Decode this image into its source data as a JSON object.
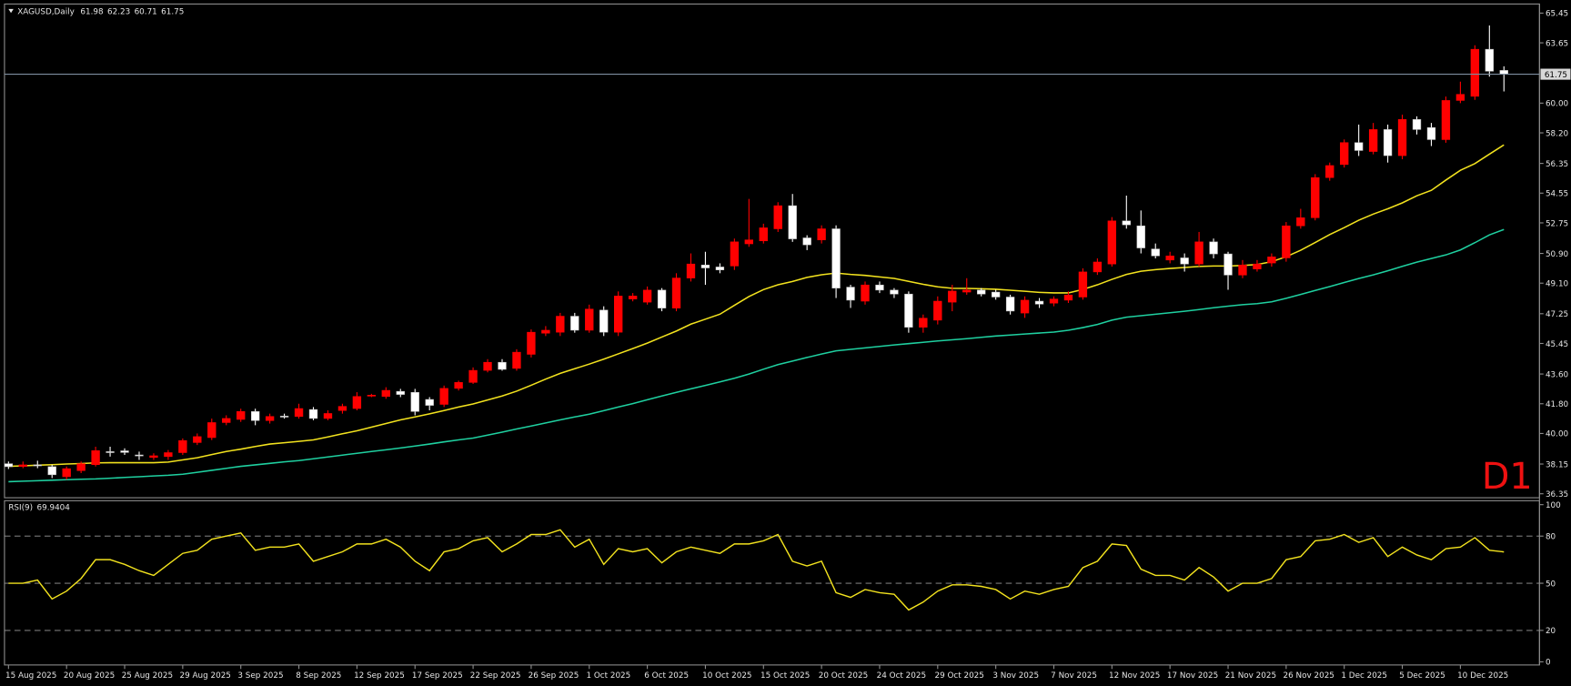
{
  "chart_data": [
    {
      "type": "candlestick",
      "title": "XAGUSD,Daily",
      "timeframe_label": "D1",
      "up_color": "#ff0000",
      "down_color": "#ffffff",
      "categories": [
        "15 Aug 2025",
        null,
        null,
        null,
        "20 Aug 2025",
        null,
        null,
        null,
        "25 Aug 2025",
        null,
        null,
        null,
        "29 Aug 2025",
        null,
        null,
        null,
        "3 Sep 2025",
        null,
        null,
        null,
        "8 Sep 2025",
        null,
        null,
        null,
        "12 Sep 2025",
        null,
        null,
        null,
        "17 Sep 2025",
        null,
        null,
        null,
        "22 Sep 2025",
        null,
        null,
        null,
        "26 Sep 2025",
        null,
        null,
        null,
        "1 Oct 2025",
        null,
        null,
        null,
        "6 Oct 2025",
        null,
        null,
        null,
        "10 Oct 2025",
        null,
        null,
        null,
        "15 Oct 2025",
        null,
        null,
        null,
        "20 Oct 2025",
        null,
        null,
        null,
        "24 Oct 2025",
        null,
        null,
        null,
        "29 Oct 2025",
        null,
        null,
        null,
        "3 Nov 2025",
        null,
        null,
        null,
        "7 Nov 2025",
        null,
        null,
        null,
        "12 Nov 2025",
        null,
        null,
        null,
        "17 Nov 2025",
        null,
        null,
        null,
        "21 Nov 2025",
        null,
        null,
        null,
        "26 Nov 2025",
        null,
        null,
        null,
        "1 Dec 2025",
        null,
        null,
        null,
        "5 Dec 2025",
        null,
        null,
        null,
        "10 Dec 2025",
        null,
        null,
        null
      ],
      "open": [
        38.17,
        38.0,
        38.1,
        37.99,
        37.38,
        37.75,
        38.11,
        38.9,
        38.95,
        38.7,
        38.55,
        38.6,
        38.84,
        39.45,
        39.75,
        40.66,
        40.85,
        41.33,
        40.78,
        41.05,
        41.03,
        41.45,
        40.91,
        41.39,
        41.51,
        42.28,
        42.24,
        42.55,
        42.49,
        42.06,
        41.76,
        42.73,
        43.09,
        43.82,
        44.31,
        43.94,
        44.79,
        46.07,
        46.13,
        47.1,
        46.25,
        47.47,
        46.13,
        48.14,
        47.95,
        48.68,
        47.59,
        49.41,
        50.2,
        50.08,
        50.14,
        51.48,
        51.66,
        52.39,
        53.79,
        51.84,
        51.72,
        52.39,
        48.86,
        48.01,
        48.99,
        48.68,
        48.44,
        46.43,
        46.86,
        47.95,
        48.56,
        48.68,
        48.56,
        48.26,
        47.29,
        48.01,
        47.89,
        48.07,
        48.26,
        49.78,
        50.26,
        52.87,
        52.57,
        51.17,
        50.5,
        50.63,
        50.26,
        51.6,
        50.87,
        49.59,
        49.96,
        50.32,
        50.63,
        52.57,
        53.06,
        55.49,
        56.28,
        57.61,
        57.07,
        58.4,
        56.82,
        59.01,
        58.52,
        57.79,
        60.16,
        60.41,
        63.26,
        61.98
      ],
      "high": [
        38.3,
        38.3,
        38.35,
        38.1,
        38.0,
        38.3,
        39.2,
        39.2,
        39.1,
        38.9,
        38.8,
        39.0,
        39.7,
        40.0,
        40.9,
        41.1,
        41.5,
        41.5,
        41.2,
        41.2,
        41.8,
        41.6,
        41.4,
        41.8,
        42.5,
        42.4,
        42.8,
        42.7,
        42.7,
        42.2,
        42.9,
        43.2,
        44.0,
        44.5,
        44.5,
        45.1,
        46.3,
        46.5,
        47.3,
        47.3,
        47.8,
        47.7,
        48.6,
        48.5,
        48.9,
        48.8,
        49.7,
        50.9,
        51.0,
        50.3,
        51.8,
        54.2,
        52.7,
        54.0,
        54.5,
        52.0,
        52.6,
        52.6,
        49.0,
        49.2,
        49.2,
        48.8,
        48.6,
        47.2,
        48.3,
        49.0,
        49.4,
        48.8,
        48.7,
        48.4,
        48.3,
        48.2,
        48.3,
        48.6,
        50.0,
        50.6,
        53.1,
        54.4,
        53.5,
        51.5,
        51.0,
        50.9,
        52.2,
        51.8,
        51.0,
        50.5,
        50.5,
        50.9,
        52.8,
        53.6,
        55.7,
        56.4,
        57.8,
        58.7,
        58.8,
        58.7,
        59.3,
        59.2,
        58.8,
        60.4,
        61.3,
        63.5,
        64.7,
        62.23
      ],
      "low": [
        37.85,
        37.9,
        37.9,
        37.3,
        37.2,
        37.6,
        38.0,
        38.6,
        38.7,
        38.4,
        38.4,
        38.4,
        38.7,
        39.3,
        39.6,
        40.5,
        40.7,
        40.5,
        40.6,
        40.9,
        40.9,
        40.8,
        40.8,
        41.2,
        41.4,
        42.2,
        42.1,
        42.2,
        41.1,
        41.4,
        41.6,
        42.6,
        43.0,
        43.7,
        43.8,
        43.8,
        44.6,
        45.9,
        45.9,
        46.1,
        46.1,
        45.9,
        45.9,
        48.0,
        47.8,
        47.4,
        47.4,
        49.2,
        49.0,
        49.7,
        49.9,
        51.3,
        51.5,
        52.2,
        51.6,
        51.1,
        51.5,
        48.2,
        47.6,
        47.8,
        48.5,
        48.2,
        46.1,
        46.1,
        46.6,
        47.4,
        48.4,
        48.3,
        48.1,
        47.2,
        47.0,
        47.6,
        47.7,
        47.9,
        48.1,
        49.6,
        50.1,
        52.4,
        50.9,
        50.6,
        50.3,
        49.8,
        50.1,
        50.6,
        48.7,
        49.4,
        49.8,
        50.1,
        50.4,
        52.4,
        52.9,
        55.3,
        56.1,
        56.8,
        56.9,
        56.4,
        56.6,
        58.1,
        57.4,
        57.6,
        60.0,
        60.2,
        61.6,
        60.71
      ],
      "close": [
        37.99,
        38.1,
        38.05,
        37.5,
        37.87,
        38.17,
        38.96,
        38.84,
        38.85,
        38.66,
        38.65,
        38.84,
        39.57,
        39.81,
        40.66,
        40.91,
        41.33,
        40.78,
        41.03,
        41.0,
        41.51,
        40.91,
        41.21,
        41.64,
        42.24,
        42.32,
        42.61,
        42.36,
        41.33,
        41.7,
        42.73,
        43.09,
        43.82,
        44.31,
        43.88,
        44.92,
        46.13,
        46.25,
        47.1,
        46.25,
        47.53,
        46.13,
        48.32,
        48.32,
        48.68,
        47.59,
        49.41,
        50.26,
        50.02,
        49.9,
        51.6,
        51.72,
        52.45,
        53.79,
        51.78,
        51.42,
        52.39,
        48.8,
        48.07,
        48.99,
        48.68,
        48.44,
        46.43,
        46.98,
        48.01,
        48.62,
        48.68,
        48.44,
        48.26,
        47.41,
        48.07,
        47.83,
        48.14,
        48.38,
        49.78,
        50.38,
        52.87,
        52.63,
        51.23,
        50.75,
        50.75,
        50.26,
        51.6,
        50.87,
        49.59,
        50.2,
        50.26,
        50.69,
        52.57,
        53.06,
        55.49,
        56.22,
        57.61,
        57.13,
        58.4,
        56.82,
        59.01,
        58.4,
        57.79,
        60.16,
        60.53,
        63.26,
        61.93,
        61.75
      ],
      "overlays": [
        {
          "color": "#f2e21e",
          "values": [
            38.01,
            38.04,
            38.08,
            38.11,
            38.15,
            38.18,
            38.22,
            38.23,
            38.23,
            38.23,
            38.23,
            38.27,
            38.4,
            38.53,
            38.72,
            38.91,
            39.05,
            39.21,
            39.36,
            39.44,
            39.52,
            39.61,
            39.79,
            39.98,
            40.16,
            40.38,
            40.6,
            40.82,
            41.0,
            41.19,
            41.39,
            41.6,
            41.79,
            42.03,
            42.27,
            42.56,
            42.92,
            43.29,
            43.64,
            43.92,
            44.2,
            44.5,
            44.82,
            45.14,
            45.47,
            45.84,
            46.2,
            46.62,
            46.92,
            47.22,
            47.76,
            48.29,
            48.71,
            49.0,
            49.2,
            49.45,
            49.61,
            49.71,
            49.63,
            49.57,
            49.48,
            49.39,
            49.21,
            49.03,
            48.88,
            48.79,
            48.78,
            48.76,
            48.73,
            48.67,
            48.61,
            48.54,
            48.51,
            48.51,
            48.72,
            49.0,
            49.33,
            49.63,
            49.82,
            49.92,
            49.99,
            50.05,
            50.11,
            50.14,
            50.14,
            50.17,
            50.23,
            50.4,
            50.7,
            51.09,
            51.56,
            52.04,
            52.46,
            52.91,
            53.28,
            53.6,
            53.96,
            54.39,
            54.72,
            55.34,
            55.93,
            56.34,
            56.91,
            57.47
          ]
        },
        {
          "color": "#1fd0a0",
          "values": [
            37.08,
            37.11,
            37.14,
            37.17,
            37.2,
            37.23,
            37.25,
            37.29,
            37.34,
            37.38,
            37.43,
            37.47,
            37.53,
            37.65,
            37.77,
            37.89,
            38.01,
            38.1,
            38.19,
            38.28,
            38.36,
            38.47,
            38.58,
            38.69,
            38.8,
            38.91,
            39.01,
            39.12,
            39.24,
            39.36,
            39.49,
            39.61,
            39.72,
            39.9,
            40.08,
            40.27,
            40.45,
            40.64,
            40.82,
            41.0,
            41.17,
            41.38,
            41.6,
            41.81,
            42.04,
            42.27,
            42.49,
            42.7,
            42.91,
            43.12,
            43.34,
            43.6,
            43.89,
            44.17,
            44.38,
            44.6,
            44.81,
            45.0,
            45.09,
            45.18,
            45.27,
            45.36,
            45.44,
            45.52,
            45.6,
            45.67,
            45.74,
            45.82,
            45.9,
            45.96,
            46.02,
            46.08,
            46.14,
            46.25,
            46.41,
            46.6,
            46.86,
            47.04,
            47.13,
            47.22,
            47.31,
            47.4,
            47.5,
            47.61,
            47.71,
            47.8,
            47.86,
            47.97,
            48.18,
            48.42,
            48.66,
            48.89,
            49.14,
            49.38,
            49.6,
            49.85,
            50.12,
            50.37,
            50.59,
            50.81,
            51.11,
            51.55,
            52.02,
            52.35
          ]
        }
      ],
      "ylim": [
        36.11,
        66.0
      ],
      "yticks": [
        65.45,
        63.65,
        {
          "value": 60,
          "label": "60.00"
        },
        {
          "value": 58.2,
          "label": "58.20"
        },
        56.35,
        54.55,
        52.75,
        {
          "value": 50.9,
          "label": "50.90"
        },
        {
          "value": 49.1,
          "label": "49.10"
        },
        47.25,
        45.45,
        {
          "value": 43.6,
          "label": "43.60"
        },
        {
          "value": 41.8,
          "label": "41.80"
        },
        {
          "value": 40,
          "label": "40.00"
        },
        38.15,
        36.35
      ]
    },
    {
      "type": "line",
      "title": "RSI(9)",
      "color": "#f2e21e",
      "values": [
        50,
        50,
        52,
        40,
        45,
        53,
        65,
        65,
        62,
        58,
        55,
        62,
        69,
        71,
        78,
        80,
        82,
        71,
        73,
        73,
        75,
        64,
        67,
        70,
        75,
        75,
        78,
        73,
        64,
        58,
        70,
        72,
        77,
        79,
        70,
        75,
        81,
        81,
        84,
        73,
        78,
        62,
        72,
        70,
        72,
        63,
        70,
        73,
        71,
        69,
        75,
        75,
        77,
        81,
        64,
        61,
        64,
        44,
        41,
        46,
        44,
        43,
        33,
        38,
        45,
        49,
        49,
        48,
        46,
        40,
        45,
        43,
        46,
        48,
        60,
        64,
        75,
        74,
        59,
        55,
        55,
        52,
        60,
        54,
        45,
        50,
        50,
        53,
        65,
        67,
        77,
        78,
        81,
        76,
        79,
        67,
        73,
        68,
        65,
        72,
        73,
        79,
        71,
        69.9404
      ],
      "ylim": [
        -2,
        102.5
      ],
      "yticks": [
        100,
        80,
        50,
        20,
        0
      ],
      "levels": [
        80,
        50,
        20
      ]
    }
  ]
}
